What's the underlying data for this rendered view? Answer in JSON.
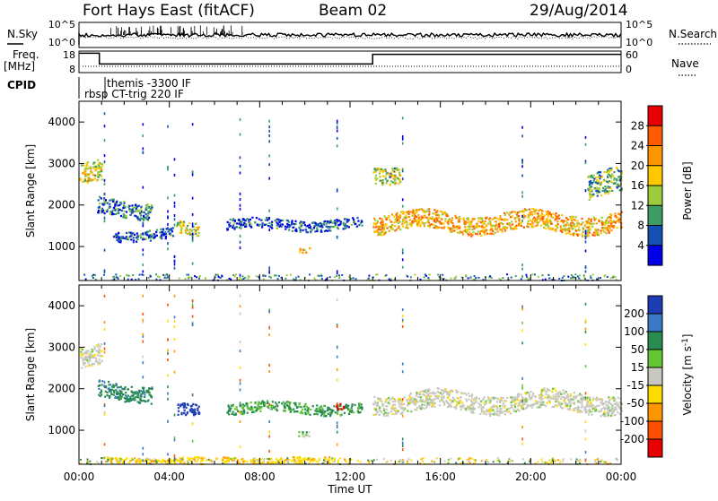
{
  "header": {
    "station": "Fort Hays East (fitACF)",
    "beam": "Beam 02",
    "date": "29/Aug/2014"
  },
  "noise_panel": {
    "left_label": "N.Sky",
    "right_label": "N.Search",
    "left_ticks": [
      "10^5",
      "10^0"
    ],
    "right_ticks": [
      "10^5",
      "10^0"
    ]
  },
  "freq_panel": {
    "left_label_1": "Freq.",
    "left_label_2": "[MHz]",
    "right_label": "Nave",
    "left_ticks": [
      "18",
      "8"
    ],
    "right_ticks": [
      "60",
      "0"
    ],
    "freq_segments": [
      {
        "start": 0.0,
        "end": 0.9,
        "value": 17.0
      },
      {
        "start": 0.9,
        "end": 13.0,
        "value": 12.0
      },
      {
        "start": 13.0,
        "end": 24.0,
        "value": 16.5
      }
    ]
  },
  "cpid_panel": {
    "label": "CPID",
    "modes": [
      "themis -3300 IF",
      "rbsp CT-trig 220 IF"
    ]
  },
  "chart_data": [
    {
      "type": "heatmap",
      "parameter": "Power",
      "ylabel": "Slant Range [km]",
      "colorbar_label": "Power [dB]",
      "colorbar_ticks": [
        "28",
        "24",
        "20",
        "16",
        "12",
        "8",
        "4"
      ],
      "colorbar_colors": [
        "#e60000",
        "#ff5a00",
        "#ff9600",
        "#ffc800",
        "#9ccc3c",
        "#3c9c64",
        "#1450b4",
        "#0000e6"
      ],
      "ylim": [
        180,
        4500
      ],
      "yticks": [
        "1000",
        "2000",
        "3000",
        "4000"
      ],
      "xlim": [
        0,
        24
      ],
      "xlabel": "",
      "features": [
        {
          "t_start": 0.0,
          "t_end": 1.0,
          "range_center": 2750,
          "range_width": 500,
          "power": 18
        },
        {
          "t_start": 0.8,
          "t_end": 3.2,
          "range_center": 1950,
          "range_width": 400,
          "power": 10
        },
        {
          "t_start": 1.5,
          "t_end": 4.2,
          "range_center": 1300,
          "range_width": 250,
          "power": 8
        },
        {
          "t_start": 4.3,
          "t_end": 5.3,
          "range_center": 1450,
          "range_width": 300,
          "power": 18
        },
        {
          "t_start": 6.5,
          "t_end": 12.5,
          "range_center": 1550,
          "range_width": 250,
          "power": 8
        },
        {
          "t_start": 9.7,
          "t_end": 10.2,
          "range_center": 950,
          "range_width": 120,
          "power": 20
        },
        {
          "t_start": 13.0,
          "t_end": 14.2,
          "range_center": 2800,
          "range_width": 400,
          "power": 16
        },
        {
          "t_start": 13.0,
          "t_end": 24.0,
          "range_center": 1600,
          "range_width": 450,
          "power": 22
        },
        {
          "t_start": 22.5,
          "t_end": 24.0,
          "range_center": 2500,
          "range_width": 600,
          "power": 14
        }
      ]
    },
    {
      "type": "heatmap",
      "parameter": "Velocity",
      "ylabel": "Slant Range [km]",
      "colorbar_label": "Velocity [m s-1]",
      "colorbar_ticks": [
        "200",
        "100",
        "50",
        "15",
        "-15",
        "-50",
        "-100",
        "-200"
      ],
      "colorbar_colors": [
        "#1e3cb4",
        "#3c78c8",
        "#288c50",
        "#64c832",
        "#c8c8c0",
        "#ffdc00",
        "#ff9600",
        "#ff5000",
        "#e60000"
      ],
      "ground_scatter_color": "#c8c8c0",
      "ylim": [
        180,
        4500
      ],
      "yticks": [
        "1000",
        "2000",
        "3000",
        "4000"
      ],
      "xlim": [
        0,
        24
      ],
      "xlabel": "Time UT",
      "xticks": [
        "00:00",
        "04:00",
        "08:00",
        "12:00",
        "16:00",
        "20:00",
        "00:00"
      ],
      "features": [
        {
          "t_start": 0.0,
          "t_end": 1.0,
          "range_center": 2750,
          "range_width": 500,
          "velocity": 0
        },
        {
          "t_start": 0.8,
          "t_end": 3.2,
          "range_center": 1950,
          "range_width": 400,
          "velocity": 60
        },
        {
          "t_start": 4.3,
          "t_end": 5.3,
          "range_center": 1450,
          "range_width": 300,
          "velocity": 180
        },
        {
          "t_start": 6.5,
          "t_end": 12.5,
          "range_center": 1550,
          "range_width": 250,
          "velocity": 40
        },
        {
          "t_start": 9.7,
          "t_end": 10.2,
          "range_center": 950,
          "range_width": 120,
          "velocity": 20
        },
        {
          "t_start": 11.3,
          "t_end": 11.7,
          "range_center": 1550,
          "range_width": 150,
          "velocity": -200
        },
        {
          "t_start": 13.0,
          "t_end": 24.0,
          "range_center": 1700,
          "range_width": 450,
          "velocity": 0
        },
        {
          "t_start": 1.0,
          "t_end": 12.0,
          "range_center": 300,
          "range_width": 120,
          "velocity": -40
        }
      ]
    }
  ]
}
